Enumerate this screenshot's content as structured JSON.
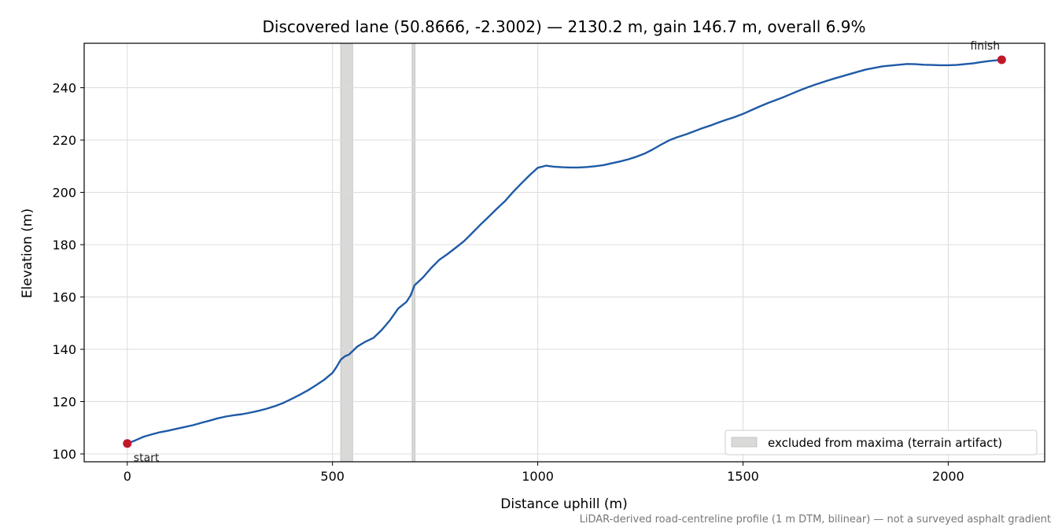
{
  "chart_data": {
    "type": "line",
    "title": "Discovered lane (50.8666, -2.3002) — 2130.2 m, gain 146.7 m, overall 6.9%",
    "xlabel": "Distance uphill (m)",
    "ylabel": "Elevation (m)",
    "xlim": [
      -105,
      2235
    ],
    "ylim": [
      97,
      257
    ],
    "xticks": [
      0,
      500,
      1000,
      1500,
      2000
    ],
    "yticks": [
      100,
      120,
      140,
      160,
      180,
      200,
      220,
      240
    ],
    "grid": true,
    "line_color": "#1f5aa6",
    "marker_color": "#c0192b",
    "band_color": "#d9d9d7",
    "series": [
      {
        "x": [
          0,
          20,
          40,
          60,
          80,
          100,
          120,
          140,
          160,
          180,
          200,
          220,
          240,
          260,
          280,
          300,
          320,
          340,
          360,
          380,
          400,
          420,
          440,
          460,
          480,
          500,
          510,
          520,
          530,
          540,
          550,
          560,
          580,
          600,
          620,
          640,
          660,
          680,
          690,
          700,
          720,
          740,
          760,
          780,
          800,
          820,
          840,
          860,
          880,
          900,
          920,
          940,
          960,
          980,
          1000,
          1020,
          1040,
          1060,
          1080,
          1100,
          1120,
          1140,
          1160,
          1180,
          1200,
          1220,
          1240,
          1260,
          1280,
          1300,
          1320,
          1340,
          1360,
          1380,
          1400,
          1420,
          1440,
          1460,
          1480,
          1500,
          1520,
          1540,
          1560,
          1580,
          1600,
          1620,
          1640,
          1660,
          1680,
          1700,
          1720,
          1740,
          1760,
          1780,
          1800,
          1820,
          1840,
          1860,
          1880,
          1900,
          1920,
          1940,
          1960,
          1980,
          2000,
          2020,
          2040,
          2060,
          2080,
          2100,
          2130.2
        ],
        "y": [
          104,
          105.2,
          106.6,
          107.5,
          108.3,
          108.9,
          109.6,
          110.3,
          111.0,
          111.9,
          112.7,
          113.6,
          114.3,
          114.8,
          115.2,
          115.8,
          116.5,
          117.3,
          118.3,
          119.5,
          121.0,
          122.6,
          124.3,
          126.3,
          128.4,
          131.0,
          133.3,
          136.0,
          137.3,
          138.0,
          139.5,
          141.0,
          142.9,
          144.4,
          147.4,
          151.1,
          155.6,
          158.1,
          160.5,
          164.5,
          167.4,
          171.0,
          174.2,
          176.4,
          178.8,
          181.3,
          184.4,
          187.6,
          190.6,
          193.7,
          196.6,
          200.2,
          203.4,
          206.5,
          209.4,
          210.2,
          209.8,
          209.6,
          209.5,
          209.5,
          209.7,
          210.0,
          210.4,
          211.1,
          211.8,
          212.6,
          213.6,
          214.8,
          216.4,
          218.2,
          219.9,
          221.1,
          222.1,
          223.3,
          224.5,
          225.5,
          226.7,
          227.8,
          228.8,
          230.0,
          231.4,
          232.8,
          234.1,
          235.3,
          236.5,
          237.8,
          239.1,
          240.3,
          241.4,
          242.4,
          243.4,
          244.3,
          245.2,
          246.1,
          247.0,
          247.6,
          248.2,
          248.5,
          248.8,
          249.1,
          249.0,
          248.8,
          248.7,
          248.6,
          248.6,
          248.7,
          249.0,
          249.3,
          249.8,
          250.2,
          250.7
        ]
      }
    ],
    "excluded_bands": [
      [
        520,
        549
      ],
      [
        694,
        701
      ]
    ],
    "markers": [
      {
        "label": "start",
        "x": 0,
        "y": 104
      },
      {
        "label": "finish",
        "x": 2130.2,
        "y": 250.7
      }
    ],
    "legend": {
      "placement": "bottom-right",
      "entry": "excluded from maxima (terrain artifact)"
    },
    "footnote": "LiDAR-derived road-centreline profile (1 m DTM, bilinear) — not a surveyed asphalt gradient"
  }
}
